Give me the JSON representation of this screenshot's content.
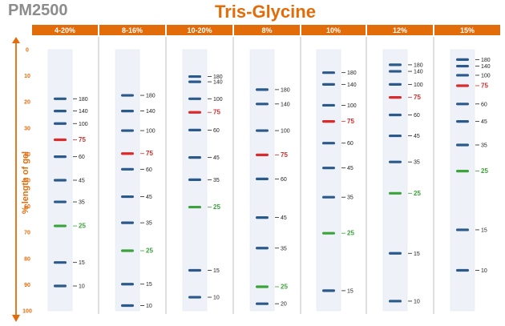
{
  "product": "PM2500",
  "title": "Tris-Glycine",
  "ylabel": "% length of gel",
  "colors": {
    "accent": "#e36c0a",
    "header_bg": "#e36c0a",
    "lane_bg": "#eef2f8",
    "divider": "#bfbfbf",
    "band_default": "#2b5a8a",
    "band_red": "#d92b2b",
    "band_green": "#3aa33a",
    "title_gray": "#8c8c8c"
  },
  "y_axis": {
    "ticks": [
      "0",
      "10",
      "20",
      "30",
      "40",
      "50",
      "60",
      "70",
      "80",
      "90",
      "100"
    ]
  },
  "gels": [
    {
      "label": "4-20%",
      "bands": [
        {
          "kda": "180",
          "pos": 18.8
        },
        {
          "kda": "140",
          "pos": 23.5
        },
        {
          "kda": "100",
          "pos": 28.3
        },
        {
          "kda": "75",
          "pos": 34.5,
          "color": "red"
        },
        {
          "kda": "60",
          "pos": 41.0
        },
        {
          "kda": "45",
          "pos": 50.0
        },
        {
          "kda": "35",
          "pos": 58.3
        },
        {
          "kda": "25",
          "pos": 67.5,
          "color": "green"
        },
        {
          "kda": "15",
          "pos": 81.5
        },
        {
          "kda": "10",
          "pos": 90.5
        }
      ]
    },
    {
      "label": "8-16%",
      "bands": [
        {
          "kda": "180",
          "pos": 17.5
        },
        {
          "kda": "140",
          "pos": 23.5
        },
        {
          "kda": "100",
          "pos": 31.0
        },
        {
          "kda": "75",
          "pos": 39.8,
          "color": "red"
        },
        {
          "kda": "60",
          "pos": 45.8
        },
        {
          "kda": "45",
          "pos": 56.3
        },
        {
          "kda": "35",
          "pos": 66.3
        },
        {
          "kda": "25",
          "pos": 77.0,
          "color": "green"
        },
        {
          "kda": "15",
          "pos": 89.8
        },
        {
          "kda": "10",
          "pos": 98.0
        }
      ]
    },
    {
      "label": "10-20%",
      "bands": [
        {
          "kda": "180",
          "pos": 10.3
        },
        {
          "kda": "140",
          "pos": 12.3
        },
        {
          "kda": "100",
          "pos": 18.8
        },
        {
          "kda": "75",
          "pos": 24.0,
          "color": "red"
        },
        {
          "kda": "60",
          "pos": 30.8
        },
        {
          "kda": "45",
          "pos": 41.3
        },
        {
          "kda": "35",
          "pos": 49.8
        },
        {
          "kda": "25",
          "pos": 60.3,
          "color": "green"
        },
        {
          "kda": "15",
          "pos": 84.5
        },
        {
          "kda": "10",
          "pos": 94.8
        }
      ]
    },
    {
      "label": "8%",
      "bands": [
        {
          "kda": "180",
          "pos": 15.3
        },
        {
          "kda": "140",
          "pos": 20.8
        },
        {
          "kda": "100",
          "pos": 31.0
        },
        {
          "kda": "75",
          "pos": 40.3,
          "color": "red"
        },
        {
          "kda": "60",
          "pos": 49.5
        },
        {
          "kda": "45",
          "pos": 64.3
        },
        {
          "kda": "35",
          "pos": 76.0
        },
        {
          "kda": "25",
          "pos": 90.8,
          "color": "green"
        },
        {
          "kda": "20",
          "pos": 97.3
        }
      ]
    },
    {
      "label": "10%",
      "bands": [
        {
          "kda": "180",
          "pos": 8.8
        },
        {
          "kda": "140",
          "pos": 13.3
        },
        {
          "kda": "100",
          "pos": 21.3
        },
        {
          "kda": "75",
          "pos": 27.5,
          "color": "red"
        },
        {
          "kda": "60",
          "pos": 35.8
        },
        {
          "kda": "45",
          "pos": 45.3
        },
        {
          "kda": "35",
          "pos": 56.5
        },
        {
          "kda": "25",
          "pos": 70.3,
          "color": "green"
        },
        {
          "kda": "15",
          "pos": 92.3
        }
      ]
    },
    {
      "label": "12%",
      "bands": [
        {
          "kda": "180",
          "pos": 5.8
        },
        {
          "kda": "140",
          "pos": 8.3
        },
        {
          "kda": "100",
          "pos": 13.3
        },
        {
          "kda": "75",
          "pos": 18.3,
          "color": "red"
        },
        {
          "kda": "60",
          "pos": 25.0
        },
        {
          "kda": "45",
          "pos": 33.0
        },
        {
          "kda": "35",
          "pos": 43.0
        },
        {
          "kda": "25",
          "pos": 55.0,
          "color": "green"
        },
        {
          "kda": "15",
          "pos": 78.0
        },
        {
          "kda": "10",
          "pos": 96.3
        }
      ]
    },
    {
      "label": "15%",
      "bands": [
        {
          "kda": "180",
          "pos": 3.8
        },
        {
          "kda": "140",
          "pos": 6.3
        },
        {
          "kda": "100",
          "pos": 9.8
        },
        {
          "kda": "75",
          "pos": 13.8,
          "color": "red"
        },
        {
          "kda": "60",
          "pos": 20.8
        },
        {
          "kda": "45",
          "pos": 27.5
        },
        {
          "kda": "35",
          "pos": 36.5
        },
        {
          "kda": "25",
          "pos": 46.5,
          "color": "green"
        },
        {
          "kda": "15",
          "pos": 69.0
        },
        {
          "kda": "10",
          "pos": 84.5
        }
      ]
    }
  ]
}
